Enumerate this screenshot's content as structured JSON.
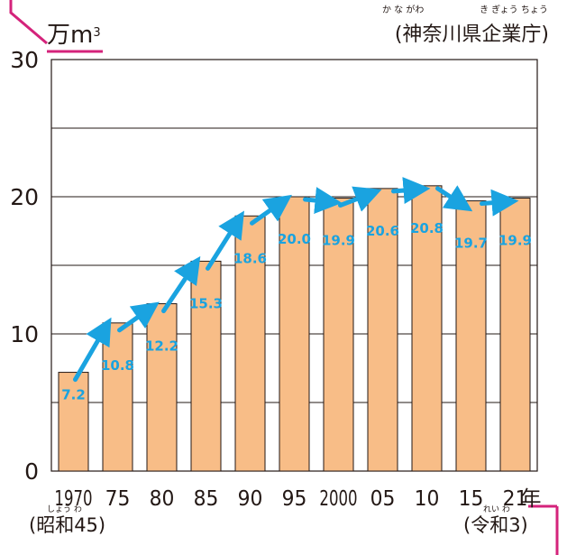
{
  "header": {
    "unit_label": "万m",
    "unit_sup": "3",
    "source": "(神奈川県企業庁)",
    "source_ruby_1": "か な がわ",
    "source_ruby_2": "き ぎょう ちょう"
  },
  "footer": {
    "start_era": "(昭和45)",
    "start_era_ruby": "しょう わ",
    "end_era": "(令和3)",
    "end_era_ruby": "れい わ",
    "year_unit": "年"
  },
  "chart_data": {
    "type": "bar",
    "categories": [
      "1970",
      "75",
      "80",
      "85",
      "90",
      "95",
      "2000",
      "05",
      "10",
      "15",
      "21"
    ],
    "values": [
      7.2,
      10.8,
      12.2,
      15.3,
      18.6,
      20.0,
      19.9,
      20.6,
      20.8,
      19.7,
      19.9
    ],
    "value_labels": [
      "7.2",
      "10.8",
      "12.2",
      "15.3",
      "18.6",
      "20.0",
      "19.9",
      "20.6",
      "20.8",
      "19.7",
      "19.9"
    ],
    "ylim": [
      0,
      30
    ],
    "y_ticks": [
      "0",
      "10",
      "20",
      "30"
    ],
    "grid": true,
    "trend_arrows": true,
    "colors": {
      "bar": "#f8bd87",
      "arrow": "#1aa3e0",
      "label": "#1aa3e0",
      "accent": "#d4237b"
    }
  }
}
